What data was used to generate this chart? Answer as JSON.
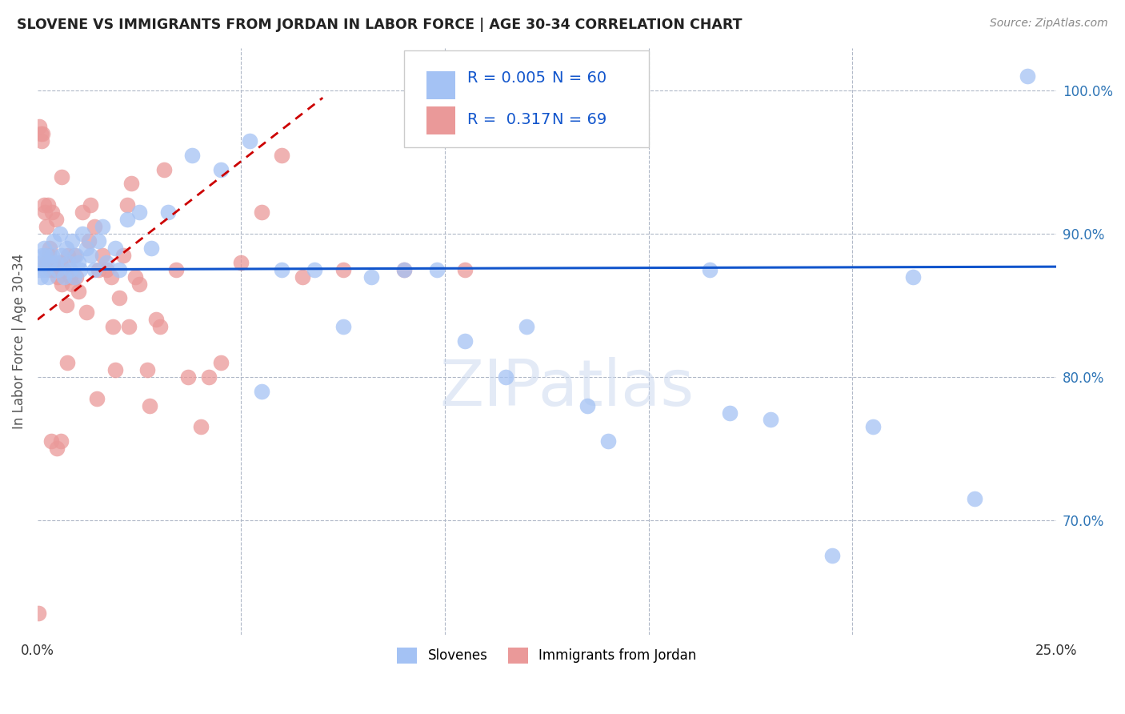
{
  "title": "SLOVENE VS IMMIGRANTS FROM JORDAN IN LABOR FORCE | AGE 30-34 CORRELATION CHART",
  "source": "Source: ZipAtlas.com",
  "ylabel": "In Labor Force | Age 30-34",
  "xmin": 0.0,
  "xmax": 25.0,
  "ymin": 62.0,
  "ymax": 103.0,
  "blue_color": "#a4c2f4",
  "pink_color": "#ea9999",
  "blue_line_color": "#1155cc",
  "pink_line_color": "#cc0000",
  "R_blue": "0.005",
  "N_blue": "60",
  "R_pink": "0.317",
  "N_pink": "69",
  "legend_label_blue": "Slovenes",
  "legend_label_pink": "Immigrants from Jordan",
  "ytick_positions": [
    70,
    80,
    90,
    100
  ],
  "ytick_labels": [
    "70.0%",
    "80.0%",
    "90.0%",
    "100.0%"
  ],
  "blue_trend_y0": 87.5,
  "blue_trend_y1": 87.7,
  "pink_trend_x0": 0.0,
  "pink_trend_y0": 84.0,
  "pink_trend_x1": 7.0,
  "pink_trend_y1": 99.5,
  "blue_x": [
    0.05,
    0.08,
    0.1,
    0.12,
    0.15,
    0.18,
    0.2,
    0.25,
    0.3,
    0.35,
    0.4,
    0.45,
    0.5,
    0.55,
    0.6,
    0.65,
    0.7,
    0.75,
    0.8,
    0.85,
    0.9,
    0.95,
    1.0,
    1.05,
    1.1,
    1.2,
    1.3,
    1.4,
    1.5,
    1.6,
    1.7,
    1.9,
    2.0,
    2.2,
    2.5,
    2.8,
    3.2,
    3.8,
    4.5,
    5.2,
    6.0,
    7.5,
    9.0,
    10.5,
    11.5,
    12.0,
    14.0,
    16.5,
    18.0,
    20.5,
    21.5,
    23.0,
    24.3,
    5.5,
    6.8,
    8.2,
    9.8,
    13.5,
    17.0,
    19.5
  ],
  "blue_y": [
    87.5,
    87.0,
    88.0,
    88.5,
    89.0,
    87.5,
    88.5,
    87.0,
    88.0,
    88.5,
    89.5,
    88.0,
    87.5,
    90.0,
    88.5,
    87.0,
    89.0,
    88.0,
    87.5,
    89.5,
    87.0,
    88.5,
    88.0,
    87.5,
    90.0,
    89.0,
    88.5,
    87.5,
    89.5,
    90.5,
    88.0,
    89.0,
    87.5,
    91.0,
    91.5,
    89.0,
    91.5,
    95.5,
    94.5,
    96.5,
    87.5,
    83.5,
    87.5,
    82.5,
    80.0,
    83.5,
    75.5,
    87.5,
    77.0,
    76.5,
    87.0,
    71.5,
    101.0,
    79.0,
    87.5,
    87.0,
    87.5,
    78.0,
    77.5,
    67.5
  ],
  "pink_x": [
    0.02,
    0.05,
    0.08,
    0.1,
    0.12,
    0.15,
    0.18,
    0.2,
    0.22,
    0.25,
    0.28,
    0.3,
    0.32,
    0.35,
    0.38,
    0.4,
    0.45,
    0.5,
    0.55,
    0.6,
    0.65,
    0.7,
    0.75,
    0.8,
    0.85,
    0.9,
    0.95,
    1.0,
    1.1,
    1.2,
    1.3,
    1.4,
    1.5,
    1.6,
    1.7,
    1.8,
    1.9,
    2.0,
    2.1,
    2.2,
    2.3,
    2.5,
    2.7,
    2.9,
    3.1,
    3.4,
    3.7,
    4.0,
    4.5,
    5.0,
    5.5,
    6.0,
    6.5,
    7.5,
    9.0,
    10.5,
    0.6,
    1.45,
    0.72,
    2.25,
    0.33,
    0.58,
    1.85,
    3.0,
    2.75,
    0.48,
    4.2,
    2.4,
    1.25
  ],
  "pink_y": [
    63.5,
    97.5,
    97.0,
    96.5,
    97.0,
    92.0,
    91.5,
    88.0,
    90.5,
    92.0,
    88.5,
    89.0,
    87.5,
    91.5,
    88.0,
    87.5,
    91.0,
    87.0,
    88.0,
    86.5,
    87.5,
    85.0,
    88.5,
    87.0,
    86.5,
    88.5,
    87.0,
    86.0,
    91.5,
    84.5,
    92.0,
    90.5,
    87.5,
    88.5,
    87.5,
    87.0,
    80.5,
    85.5,
    88.5,
    92.0,
    93.5,
    86.5,
    80.5,
    84.0,
    94.5,
    87.5,
    80.0,
    76.5,
    81.0,
    88.0,
    91.5,
    95.5,
    87.0,
    87.5,
    87.5,
    87.5,
    94.0,
    78.5,
    81.0,
    83.5,
    75.5,
    75.5,
    83.5,
    83.5,
    78.0,
    75.0,
    80.0,
    87.0,
    89.5
  ]
}
